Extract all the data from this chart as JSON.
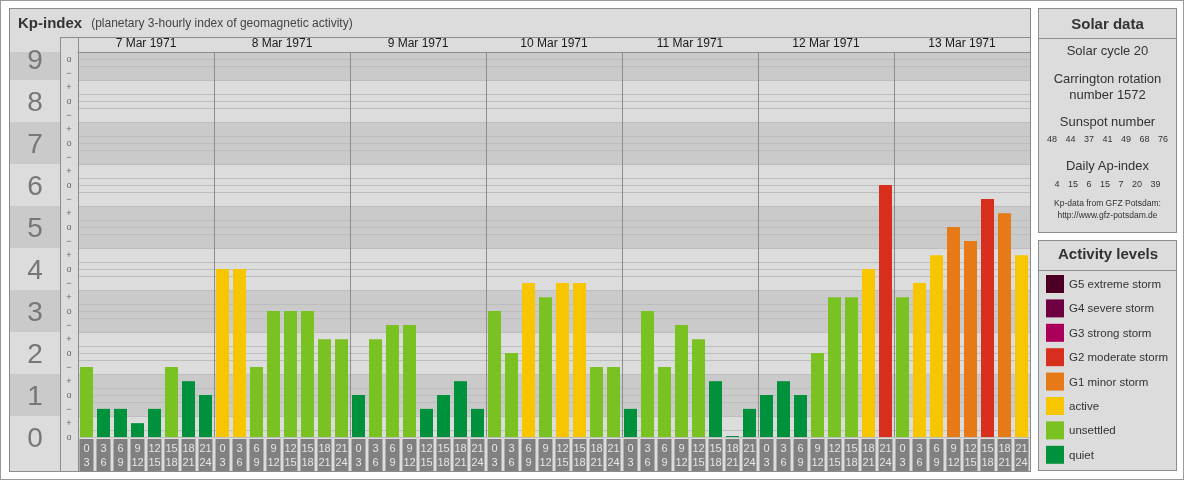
{
  "chart_data": [
    {
      "type": "bar",
      "title": "Kp-index",
      "subtitle": "(planetary 3-hourly index of geomagnetic activity)",
      "annotations": [
        "7 Mar 1971",
        "8 Mar 1971",
        "9 Mar 1971",
        "10 Mar 1971",
        "11 Mar 1971",
        "12 Mar 1971",
        "13 Mar 1971",
        "o",
        "+",
        "−",
        "o",
        "+",
        "−",
        "o",
        "+",
        "−",
        "o",
        "+",
        "−",
        "o",
        "+",
        "−",
        "o",
        "+",
        "−",
        "o",
        "+",
        "−",
        "o",
        "+",
        "−",
        "o",
        "+",
        "−",
        "o"
      ],
      "categories": [
        "0\n3",
        "3\n6",
        "6\n9",
        "9\n12",
        "12\n15",
        "15\n18",
        "18\n21",
        "21\n24",
        "0\n3",
        "3\n6",
        "6\n9",
        "9\n12",
        "12\n15",
        "15\n18",
        "18\n21",
        "21\n24",
        "0\n3",
        "3\n6",
        "6\n9",
        "9\n12",
        "12\n15",
        "15\n18",
        "18\n21",
        "21\n24",
        "0\n3",
        "3\n6",
        "6\n9",
        "9\n12",
        "12\n15",
        "15\n18",
        "18\n21",
        "21\n24",
        "0\n3",
        "3\n6",
        "6\n9",
        "9\n12",
        "12\n15",
        "15\n18",
        "18\n21",
        "21\n24",
        "0\n3",
        "3\n6",
        "6\n9",
        "9\n12",
        "12\n15",
        "15\n18",
        "18\n21",
        "21\n24",
        "0\n3",
        "3\n6",
        "6\n9",
        "9\n12",
        "12\n15",
        "15\n18",
        "18\n21",
        "21\n24"
      ],
      "series": [
        {
          "name": "G5 extreme storm",
          "color": "#4b0023",
          "values": [
            null,
            null,
            null,
            null,
            null,
            null,
            null,
            null,
            null,
            null,
            null,
            null,
            null,
            null,
            null,
            null,
            null,
            null,
            null,
            null,
            null,
            null,
            null,
            null,
            null,
            null,
            null,
            null,
            null,
            null,
            null,
            null,
            null,
            null,
            null,
            null,
            null,
            null,
            null,
            null,
            null,
            null,
            null,
            null,
            null,
            null,
            null,
            null,
            null,
            null,
            null,
            null,
            null,
            null,
            null,
            null
          ]
        },
        {
          "name": "G4 severe storm",
          "color": "#6e0041",
          "values": [
            null,
            null,
            null,
            null,
            null,
            null,
            null,
            null,
            null,
            null,
            null,
            null,
            null,
            null,
            null,
            null,
            null,
            null,
            null,
            null,
            null,
            null,
            null,
            null,
            null,
            null,
            null,
            null,
            null,
            null,
            null,
            null,
            null,
            null,
            null,
            null,
            null,
            null,
            null,
            null,
            null,
            null,
            null,
            null,
            null,
            null,
            null,
            null,
            null,
            null,
            null,
            null,
            null,
            null,
            null,
            null
          ]
        },
        {
          "name": "G3 strong storm",
          "color": "#aa005a",
          "values": [
            null,
            null,
            null,
            null,
            null,
            null,
            null,
            null,
            null,
            null,
            null,
            null,
            null,
            null,
            null,
            null,
            null,
            null,
            null,
            null,
            null,
            null,
            null,
            null,
            null,
            null,
            null,
            null,
            null,
            null,
            null,
            null,
            null,
            null,
            null,
            null,
            null,
            null,
            null,
            null,
            null,
            null,
            null,
            null,
            null,
            null,
            null,
            null,
            null,
            null,
            null,
            null,
            null,
            null,
            null,
            null
          ]
        },
        {
          "name": "G2 moderate storm",
          "color": "#d82e1e",
          "values": [
            null,
            null,
            null,
            null,
            null,
            null,
            null,
            null,
            null,
            null,
            null,
            null,
            null,
            null,
            null,
            null,
            null,
            null,
            null,
            null,
            null,
            null,
            null,
            null,
            null,
            null,
            null,
            null,
            null,
            null,
            null,
            null,
            null,
            null,
            null,
            null,
            null,
            null,
            null,
            null,
            null,
            null,
            null,
            null,
            null,
            null,
            null,
            6,
            null,
            null,
            null,
            null,
            null,
            5.67,
            null,
            null
          ]
        },
        {
          "name": "G1 minor storm",
          "color": "#e57a16",
          "values": [
            null,
            null,
            null,
            null,
            null,
            null,
            null,
            null,
            null,
            null,
            null,
            null,
            null,
            null,
            null,
            null,
            null,
            null,
            null,
            null,
            null,
            null,
            null,
            null,
            null,
            null,
            null,
            null,
            null,
            null,
            null,
            null,
            null,
            null,
            null,
            null,
            null,
            null,
            null,
            null,
            null,
            null,
            null,
            null,
            null,
            null,
            null,
            null,
            null,
            null,
            null,
            5,
            4.67,
            null,
            5.33,
            null
          ]
        },
        {
          "name": "active",
          "color": "#f8c600",
          "values": [
            null,
            null,
            null,
            null,
            null,
            null,
            null,
            null,
            4,
            4,
            null,
            null,
            null,
            null,
            null,
            null,
            null,
            null,
            null,
            null,
            null,
            null,
            null,
            null,
            null,
            null,
            3.67,
            null,
            3.67,
            3.67,
            null,
            null,
            null,
            null,
            null,
            null,
            null,
            null,
            null,
            null,
            null,
            null,
            null,
            null,
            null,
            null,
            4,
            null,
            null,
            3.67,
            4.33,
            null,
            null,
            null,
            null,
            4.33
          ]
        },
        {
          "name": "unsettled",
          "color": "#7ac122",
          "values": [
            1.67,
            null,
            null,
            null,
            null,
            1.67,
            null,
            null,
            null,
            null,
            1.67,
            3,
            3,
            3,
            2.33,
            2.33,
            null,
            2.33,
            2.67,
            2.67,
            null,
            null,
            null,
            null,
            3,
            2,
            null,
            3.33,
            null,
            null,
            1.67,
            1.67,
            null,
            3,
            1.67,
            2.67,
            2.33,
            null,
            null,
            null,
            null,
            null,
            null,
            2,
            3.33,
            3.33,
            null,
            null,
            3.33,
            null,
            null,
            null,
            null,
            null,
            null,
            null
          ]
        },
        {
          "name": "quiet",
          "color": "#00913c",
          "values": [
            null,
            0.67,
            0.67,
            0.33,
            0.67,
            null,
            1.33,
            1,
            null,
            null,
            null,
            null,
            null,
            null,
            null,
            null,
            1,
            null,
            null,
            null,
            0.67,
            1,
            1.33,
            0.67,
            null,
            null,
            null,
            null,
            null,
            null,
            null,
            null,
            0.67,
            null,
            null,
            null,
            null,
            1.33,
            0,
            0.67,
            1,
            1.33,
            1,
            null,
            null,
            null,
            null,
            null,
            null,
            null,
            null,
            null,
            null,
            null,
            null,
            null
          ]
        }
      ],
      "stacked": true,
      "ylim": [
        0,
        9.17
      ],
      "yticks": [
        0,
        {
          "value": 0.17,
          "label": null
        },
        {
          "value": 0.5,
          "label": null
        },
        {
          "value": 0.83,
          "label": null
        },
        1,
        {
          "value": 1.17,
          "label": null
        },
        {
          "value": 1.5,
          "label": null
        },
        {
          "value": 1.83,
          "label": null
        },
        2,
        {
          "value": 2.17,
          "label": null
        },
        {
          "value": 2.5,
          "label": null
        },
        {
          "value": 2.83,
          "label": null
        },
        3,
        {
          "value": 3.17,
          "label": null
        },
        {
          "value": 3.5,
          "label": null
        },
        {
          "value": 3.83,
          "label": null
        },
        4,
        {
          "value": 4.17,
          "label": null
        },
        {
          "value": 4.5,
          "label": null
        },
        {
          "value": 4.83,
          "label": null
        },
        5,
        {
          "value": 5.17,
          "label": null
        },
        {
          "value": 5.5,
          "label": null
        },
        {
          "value": 5.83,
          "label": null
        },
        6,
        {
          "value": 6.17,
          "label": null
        },
        {
          "value": 6.5,
          "label": null
        },
        {
          "value": 6.83,
          "label": null
        },
        7,
        {
          "value": 7.17,
          "label": null
        },
        {
          "value": 7.5,
          "label": null
        },
        {
          "value": 7.83,
          "label": null
        },
        8,
        {
          "value": 8.17,
          "label": null
        },
        {
          "value": 8.5,
          "label": null
        },
        {
          "value": 8.83,
          "label": null
        },
        9
      ],
      "grid": "y",
      "bands": [
        {
          "axis": "y",
          "from": 0.5,
          "to": 1.5,
          "color": "#cacaca"
        },
        {
          "axis": "y",
          "from": 2.5,
          "to": 3.5,
          "color": "#cacaca"
        },
        {
          "axis": "y",
          "from": 4.5,
          "to": 5.5,
          "color": "#cacaca"
        },
        {
          "axis": "y",
          "from": 6.5,
          "to": 7.5,
          "color": "#cacaca"
        },
        {
          "axis": "y",
          "from": 8.5,
          "to": 9.17,
          "color": "#cacaca"
        }
      ],
      "legend": "right",
      "legend_title": "Activity levels"
    },
    {
      "type": "other",
      "title": "Solar data",
      "annotations": [
        "Solar cycle 20",
        "Carrington rotation number 1572",
        "Sunspot number",
        "48 44 37 41 49 68 76",
        "Daily Ap-index",
        "4 15 6 15 7 20 39",
        "Kp-data from GFZ Potsdam: http://www.gfz-potsdam.de"
      ]
    }
  ]
}
